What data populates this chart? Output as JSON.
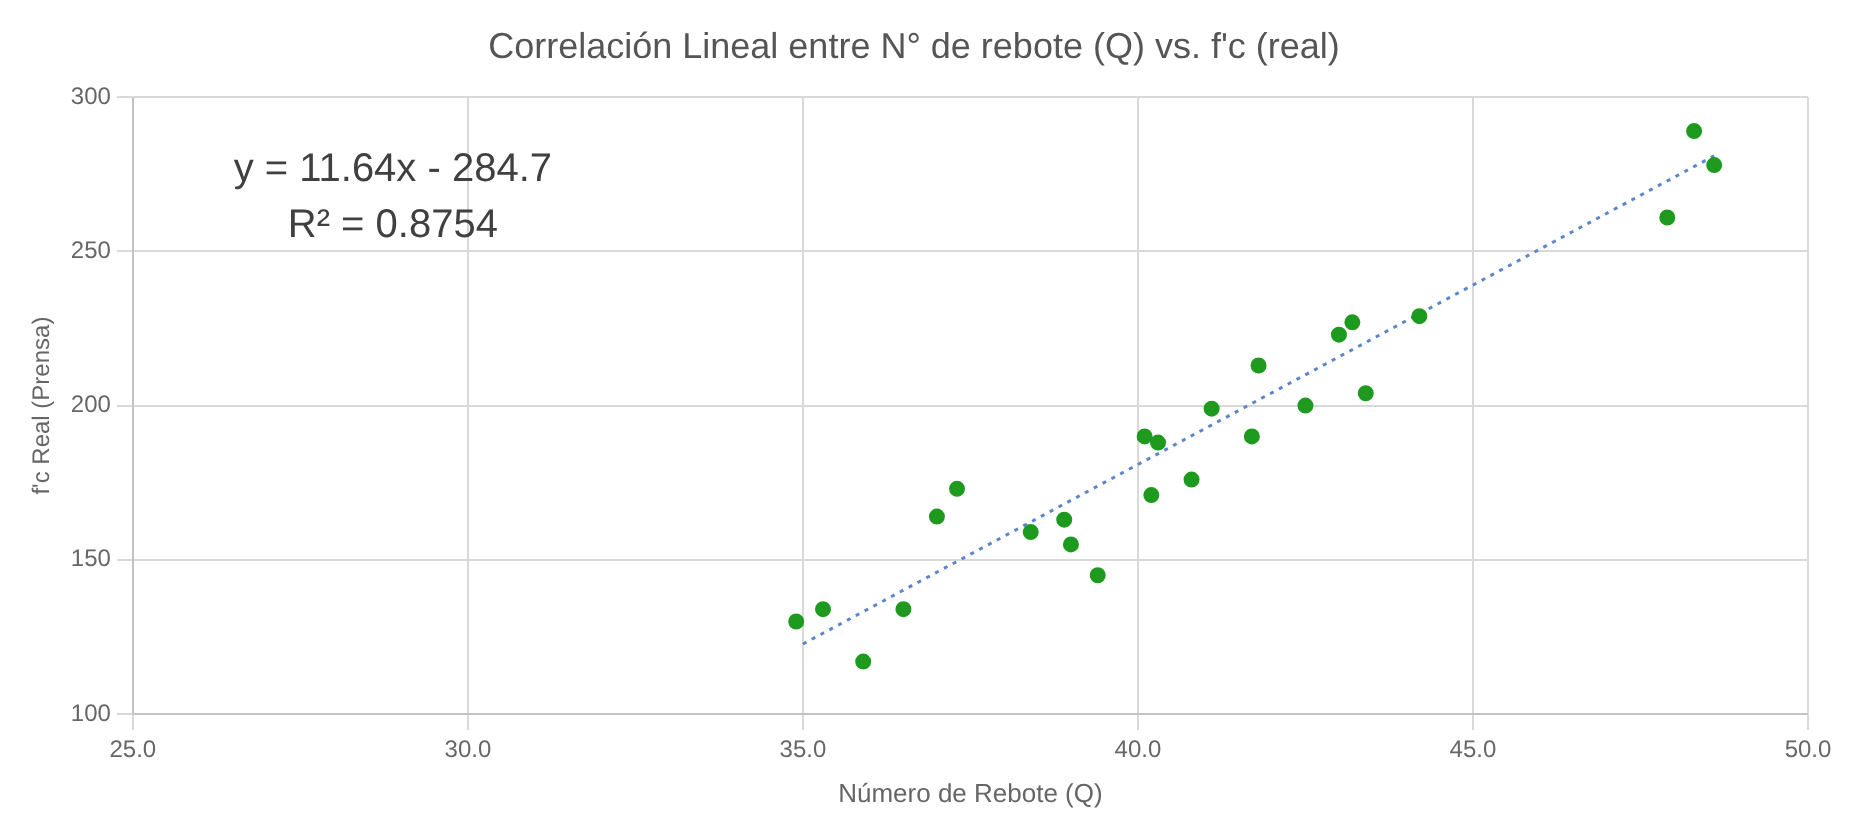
{
  "chart_data": {
    "type": "scatter",
    "title": "Correlación Lineal entre N° de rebote (Q) vs. f'c (real)",
    "xlabel": "Número de Rebote (Q)",
    "ylabel": "f'c Real (Prensa)",
    "annotations": [
      "y = 11.64x - 284.7",
      "R² = 0.8754"
    ],
    "xlim": [
      25,
      50
    ],
    "xticks": [
      {
        "value": 25,
        "label": "25.0"
      },
      {
        "value": 30,
        "label": "30.0"
      },
      {
        "value": 35,
        "label": "35.0"
      },
      {
        "value": 40,
        "label": "40.0"
      },
      {
        "value": 45,
        "label": "45.0"
      },
      {
        "value": 50,
        "label": "50.0"
      }
    ],
    "ylim": [
      100,
      300
    ],
    "yticks": [
      100,
      150,
      200,
      250,
      300
    ],
    "grid": true,
    "legend": false,
    "series": [
      {
        "color": "#1e9a1e",
        "marker": "circle",
        "x": [
          34.9,
          35.3,
          35.9,
          36.5,
          37.0,
          37.3,
          38.4,
          38.9,
          39.0,
          39.4,
          40.1,
          40.3,
          40.2,
          40.8,
          41.1,
          41.7,
          41.8,
          42.5,
          43.0,
          43.2,
          43.4,
          44.2,
          47.9,
          48.3,
          48.6
        ],
        "values": [
          130,
          134,
          117,
          134,
          164,
          173,
          159,
          163,
          155,
          145,
          190,
          188,
          171,
          176,
          199,
          190,
          213,
          200,
          223,
          227,
          204,
          229,
          261,
          289,
          278
        ]
      },
      {
        "type": "line",
        "color": "#5b86cc",
        "marker": "none",
        "line_style": "dotted",
        "x": [
          35,
          48.6
        ],
        "values": [
          122.7,
          281.0
        ]
      }
    ]
  }
}
